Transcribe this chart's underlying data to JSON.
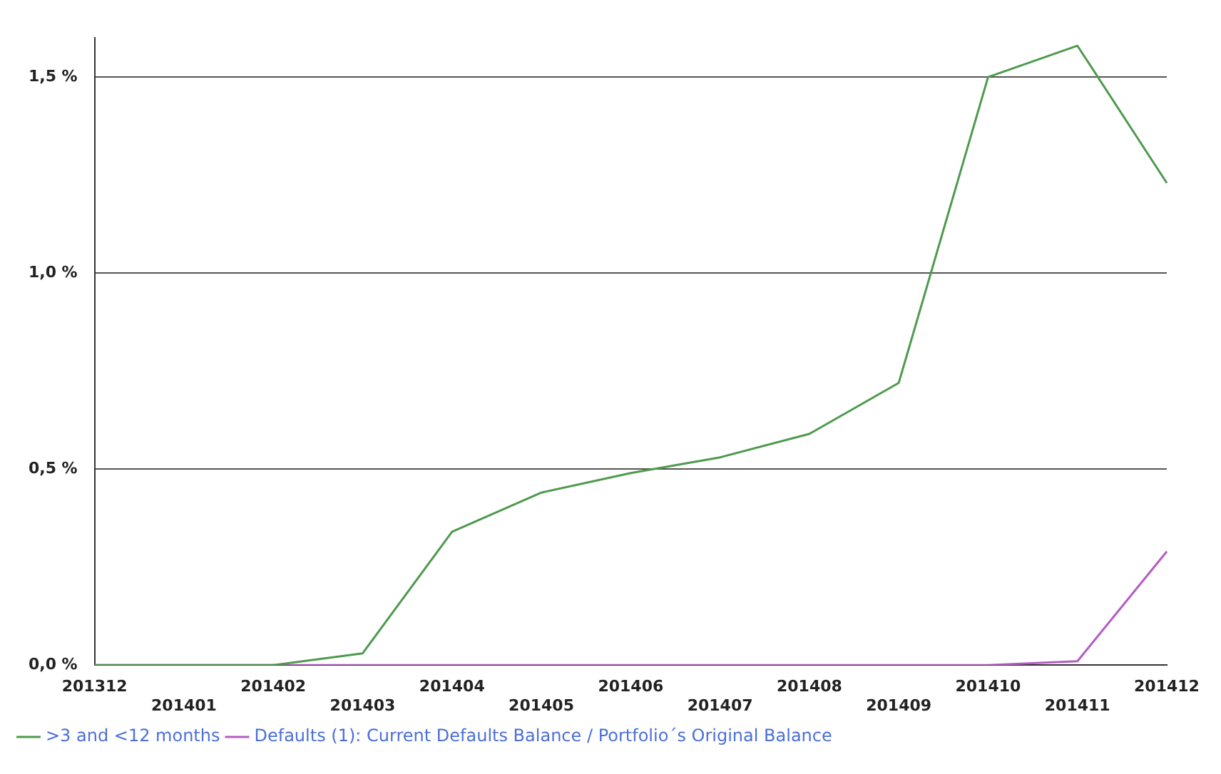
{
  "chart_data": {
    "type": "line",
    "categories": [
      "201312",
      "201401",
      "201402",
      "201403",
      "201404",
      "201405",
      "201406",
      "201407",
      "201408",
      "201409",
      "201410",
      "201411",
      "201412"
    ],
    "series": [
      {
        "name": ">3 and <12 months",
        "color": "#4e9a4e",
        "values": [
          0,
          0,
          0,
          0.03,
          0.34,
          0.44,
          0.49,
          0.53,
          0.59,
          0.72,
          1.5,
          1.58,
          1.23
        ]
      },
      {
        "name": "Defaults (1): Current Defaults Balance / Portfolio´s Original Balance",
        "color": "#b45cc4",
        "values": [
          0,
          0,
          0,
          0,
          0,
          0,
          0,
          0,
          0,
          0,
          0,
          0.01,
          0.29
        ]
      }
    ],
    "ylim": [
      0,
      1.6
    ],
    "yticks": [
      {
        "value": 0,
        "label": "0,0 %"
      },
      {
        "value": 0.5,
        "label": "0,5 %"
      },
      {
        "value": 1,
        "label": "1,0 %"
      },
      {
        "value": 1.5,
        "label": "1,5 %"
      }
    ],
    "grid": "y",
    "legend": "bottom left",
    "marker": "none",
    "line_style": "solid"
  }
}
